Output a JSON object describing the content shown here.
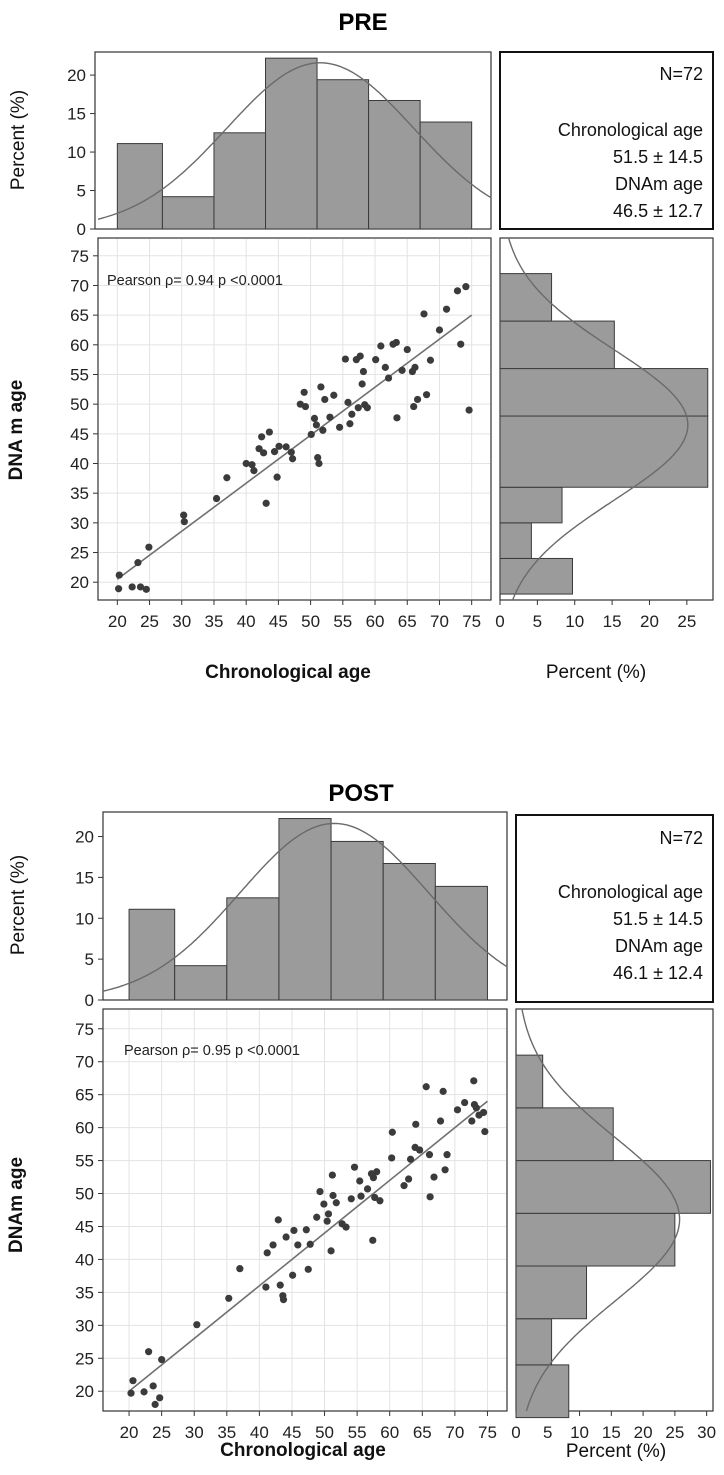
{
  "chart_data": [
    {
      "type": "scatter",
      "title": "PRE",
      "xlabel": "Chronological age",
      "ylabel": "DNA m age",
      "xlim": [
        17,
        78
      ],
      "ylim": [
        17,
        78
      ],
      "x_ticks": [
        20,
        25,
        30,
        35,
        40,
        45,
        50,
        55,
        60,
        65,
        70,
        75
      ],
      "y_ticks": [
        20,
        25,
        30,
        35,
        40,
        45,
        50,
        55,
        60,
        65,
        70,
        75
      ],
      "annotation": "Pearson ρ= 0.94 p <0.0001",
      "regression_line": {
        "x": [
          20,
          75
        ],
        "y": [
          20.5,
          65
        ]
      },
      "points": [
        [
          20.3,
          21.2
        ],
        [
          20.2,
          18.9
        ],
        [
          22.3,
          19.2
        ],
        [
          23.2,
          23.3
        ],
        [
          23.6,
          19.2
        ],
        [
          24.5,
          18.8
        ],
        [
          24.9,
          25.9
        ],
        [
          30.3,
          31.3
        ],
        [
          30.4,
          30.2
        ],
        [
          35.4,
          34.1
        ],
        [
          37.0,
          37.6
        ],
        [
          40.0,
          40.0
        ],
        [
          40.9,
          39.8
        ],
        [
          41.2,
          38.8
        ],
        [
          42.0,
          42.5
        ],
        [
          42.4,
          44.5
        ],
        [
          42.7,
          41.8
        ],
        [
          43.1,
          33.3
        ],
        [
          43.6,
          45.3
        ],
        [
          44.4,
          42.0
        ],
        [
          44.8,
          37.7
        ],
        [
          45.1,
          42.9
        ],
        [
          46.2,
          42.8
        ],
        [
          47.0,
          41.9
        ],
        [
          47.2,
          40.8
        ],
        [
          48.4,
          50.0
        ],
        [
          49.0,
          52.0
        ],
        [
          49.2,
          49.6
        ],
        [
          50.1,
          44.9
        ],
        [
          50.6,
          47.6
        ],
        [
          50.9,
          46.5
        ],
        [
          51.1,
          41.0
        ],
        [
          51.3,
          40.0
        ],
        [
          51.6,
          52.9
        ],
        [
          51.9,
          45.6
        ],
        [
          52.2,
          50.8
        ],
        [
          53.0,
          47.8
        ],
        [
          53.6,
          51.5
        ],
        [
          54.5,
          46.1
        ],
        [
          55.4,
          57.6
        ],
        [
          55.8,
          50.3
        ],
        [
          56.1,
          46.7
        ],
        [
          56.4,
          48.3
        ],
        [
          57.1,
          57.5
        ],
        [
          57.4,
          49.4
        ],
        [
          57.7,
          58.1
        ],
        [
          58.0,
          53.4
        ],
        [
          58.2,
          55.5
        ],
        [
          58.4,
          49.9
        ],
        [
          58.8,
          49.4
        ],
        [
          60.1,
          57.5
        ],
        [
          60.9,
          59.8
        ],
        [
          61.6,
          56.2
        ],
        [
          62.1,
          54.4
        ],
        [
          62.8,
          60.1
        ],
        [
          63.3,
          60.4
        ],
        [
          63.4,
          47.7
        ],
        [
          64.2,
          55.7
        ],
        [
          65.0,
          59.2
        ],
        [
          65.8,
          55.5
        ],
        [
          66.0,
          49.6
        ],
        [
          66.2,
          56.2
        ],
        [
          66.6,
          50.8
        ],
        [
          67.6,
          65.2
        ],
        [
          68.0,
          51.6
        ],
        [
          68.6,
          57.4
        ],
        [
          70.0,
          62.5
        ],
        [
          71.1,
          66.0
        ],
        [
          72.8,
          69.1
        ],
        [
          73.3,
          60.1
        ],
        [
          74.1,
          69.8
        ],
        [
          74.6,
          49.0
        ]
      ],
      "top_histogram": {
        "ylabel": "Percent (%)",
        "ylim": [
          0,
          23
        ],
        "y_ticks": [
          0,
          5,
          10,
          15,
          20
        ],
        "bins": [
          [
            20,
            27,
            11.1
          ],
          [
            27,
            35,
            4.2
          ],
          [
            35,
            43,
            12.5
          ],
          [
            43,
            51,
            22.2
          ],
          [
            51,
            59,
            19.4
          ],
          [
            59,
            67,
            16.7
          ],
          [
            67,
            75,
            13.9
          ]
        ],
        "normal_curve": {
          "mean": 51.5,
          "sd": 14.5
        }
      },
      "side_histogram": {
        "xlabel": "Percent (%)",
        "xlim": [
          0,
          28.5
        ],
        "x_ticks": [
          0,
          5,
          10,
          15,
          20,
          25
        ],
        "bins": [
          [
            18,
            24,
            9.7
          ],
          [
            24,
            30,
            4.2
          ],
          [
            30,
            36,
            8.3
          ],
          [
            36,
            48,
            27.8
          ],
          [
            48,
            56,
            27.8
          ],
          [
            56,
            64,
            15.3
          ],
          [
            64,
            72,
            6.9
          ]
        ],
        "normal_curve": {
          "mean": 46.5,
          "sd": 12.7
        }
      },
      "stats_box": {
        "n": "N=72",
        "label1": "Chronological age",
        "value1": "51.5 ± 14.5",
        "label2": "DNAm age",
        "value2": "46.5 ± 12.7"
      }
    },
    {
      "type": "scatter",
      "title": "POST",
      "xlabel": "Chronological age",
      "ylabel": "DNAm age",
      "xlim": [
        16,
        78
      ],
      "ylim": [
        17,
        78
      ],
      "x_ticks": [
        20,
        25,
        30,
        35,
        40,
        45,
        50,
        55,
        60,
        65,
        70,
        75
      ],
      "y_ticks": [
        20,
        25,
        30,
        35,
        40,
        45,
        50,
        55,
        60,
        65,
        70,
        75
      ],
      "annotation": "Pearson ρ= 0.95 p <0.0001",
      "regression_line": {
        "x": [
          20,
          75
        ],
        "y": [
          20,
          64
        ]
      },
      "points": [
        [
          20.3,
          19.7
        ],
        [
          20.6,
          21.6
        ],
        [
          22.3,
          19.9
        ],
        [
          23.0,
          26.0
        ],
        [
          23.7,
          20.8
        ],
        [
          24.0,
          18.0
        ],
        [
          24.7,
          19.0
        ],
        [
          25.0,
          24.8
        ],
        [
          30.4,
          30.1
        ],
        [
          35.3,
          34.1
        ],
        [
          37.0,
          38.6
        ],
        [
          41.0,
          35.8
        ],
        [
          41.2,
          41.0
        ],
        [
          42.1,
          42.2
        ],
        [
          42.9,
          46.0
        ],
        [
          43.2,
          36.1
        ],
        [
          43.6,
          34.5
        ],
        [
          43.7,
          33.9
        ],
        [
          44.1,
          43.4
        ],
        [
          45.1,
          37.6
        ],
        [
          45.3,
          44.4
        ],
        [
          45.9,
          42.2
        ],
        [
          47.2,
          44.5
        ],
        [
          47.5,
          38.5
        ],
        [
          47.8,
          42.3
        ],
        [
          48.8,
          46.4
        ],
        [
          49.3,
          50.3
        ],
        [
          49.9,
          48.4
        ],
        [
          50.4,
          45.8
        ],
        [
          50.6,
          46.9
        ],
        [
          51.0,
          41.3
        ],
        [
          51.2,
          52.8
        ],
        [
          51.3,
          49.7
        ],
        [
          51.8,
          48.6
        ],
        [
          52.7,
          45.4
        ],
        [
          53.3,
          44.9
        ],
        [
          54.1,
          49.2
        ],
        [
          54.6,
          54.0
        ],
        [
          55.4,
          51.9
        ],
        [
          55.6,
          49.6
        ],
        [
          56.6,
          50.7
        ],
        [
          57.4,
          42.9
        ],
        [
          57.5,
          52.4
        ],
        [
          57.7,
          49.4
        ],
        [
          58.0,
          53.3
        ],
        [
          58.5,
          48.9
        ],
        [
          60.3,
          55.4
        ],
        [
          60.4,
          59.3
        ],
        [
          62.2,
          51.2
        ],
        [
          62.9,
          52.2
        ],
        [
          63.2,
          55.2
        ],
        [
          63.9,
          57.0
        ],
        [
          64.0,
          60.5
        ],
        [
          64.6,
          56.6
        ],
        [
          65.6,
          66.2
        ],
        [
          66.1,
          55.9
        ],
        [
          66.2,
          49.5
        ],
        [
          66.8,
          52.5
        ],
        [
          67.8,
          61.0
        ],
        [
          68.2,
          65.5
        ],
        [
          68.5,
          53.6
        ],
        [
          68.8,
          55.9
        ],
        [
          70.4,
          62.7
        ],
        [
          71.5,
          63.8
        ],
        [
          72.6,
          61.0
        ],
        [
          72.9,
          67.1
        ],
        [
          73.3,
          63.0
        ],
        [
          73.7,
          61.9
        ],
        [
          74.4,
          62.3
        ],
        [
          74.6,
          59.4
        ],
        [
          73.0,
          63.5
        ],
        [
          57.2,
          53.0
        ]
      ],
      "top_histogram": {
        "ylabel": "Percent (%)",
        "ylim": [
          0,
          23
        ],
        "y_ticks": [
          0,
          5,
          10,
          15,
          20
        ],
        "bins": [
          [
            20,
            27,
            11.1
          ],
          [
            27,
            35,
            4.2
          ],
          [
            35,
            43,
            12.5
          ],
          [
            43,
            51,
            22.2
          ],
          [
            51,
            59,
            19.4
          ],
          [
            59,
            67,
            16.7
          ],
          [
            67,
            75,
            13.9
          ]
        ],
        "normal_curve": {
          "mean": 51.5,
          "sd": 14.5
        }
      },
      "side_histogram": {
        "xlabel": "Percent (%)",
        "xlim": [
          0,
          31
        ],
        "x_ticks": [
          0,
          5,
          10,
          15,
          20,
          25,
          30
        ],
        "bins": [
          [
            16,
            24,
            8.3
          ],
          [
            24,
            31,
            5.6
          ],
          [
            31,
            39,
            11.1
          ],
          [
            39,
            47,
            25.0
          ],
          [
            47,
            55,
            30.6
          ],
          [
            55,
            63,
            15.3
          ],
          [
            63,
            71,
            4.2
          ]
        ],
        "normal_curve": {
          "mean": 46.1,
          "sd": 12.4
        }
      },
      "stats_box": {
        "n": "N=72",
        "label1": "Chronological age",
        "value1": "51.5 ± 14.5",
        "label2": "DNAm age",
        "value2": "46.1 ± 12.4"
      }
    }
  ]
}
